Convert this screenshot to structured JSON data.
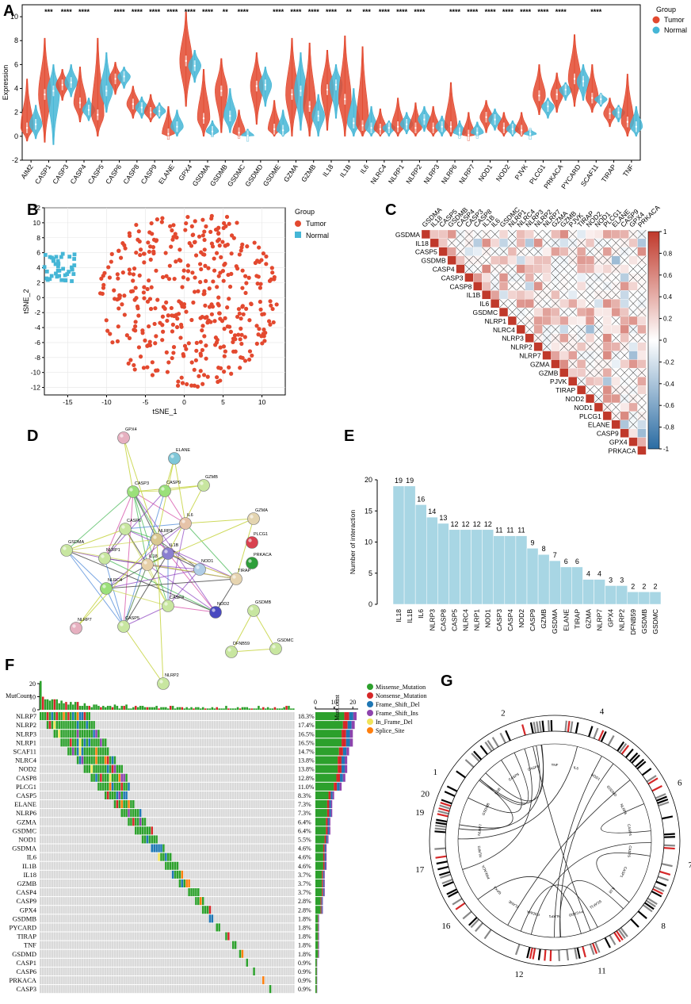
{
  "colors": {
    "tumor": "#e3492f",
    "normal": "#45b6d6",
    "bar": "#a8d6e4",
    "missense": "#2ca02c",
    "nonsense": "#d62728",
    "frame_del": "#1f77b4",
    "frame_ins": "#8e44ad",
    "inframe_del": "#f1e45a",
    "splice": "#ff7f0e",
    "grey": "#d9d9d9",
    "corr_pos": "#c0392b",
    "corr_neg": "#2b6ca3"
  },
  "panel_letters": [
    "A",
    "B",
    "C",
    "D",
    "E",
    "F",
    "G"
  ],
  "chart_data": [
    {
      "id": "A",
      "type": "violin",
      "ylabel": "Expression",
      "ylim": [
        -2,
        11
      ],
      "yticks": [
        -2,
        0,
        2,
        4,
        6,
        8,
        10
      ],
      "legend": {
        "title": "Group",
        "items": [
          "Tumor",
          "Normal"
        ],
        "position": "top-right"
      },
      "genes": [
        "AIM2",
        "CASP1",
        "CASP3",
        "CASP4",
        "CASP5",
        "CASP6",
        "CASP8",
        "CASP9",
        "ELANE",
        "GPX4",
        "GSDMA",
        "GSDMB",
        "GSDMC",
        "GSDMD",
        "GSDME",
        "GZMA",
        "GZMB",
        "IL18",
        "IL1B",
        "IL6",
        "NLRC4",
        "NLRP1",
        "NLRP2",
        "NLRP3",
        "NLRP6",
        "NLRP7",
        "NOD1",
        "NOD2",
        "PJVK",
        "PLCG1",
        "PRKACA",
        "PYCARD",
        "SCAF11",
        "TIRAP",
        "TNF"
      ],
      "significance": [
        "",
        "***",
        "****",
        "****",
        "",
        "****",
        "****",
        "****",
        "****",
        "****",
        "****",
        "**",
        "****",
        "",
        "****",
        "****",
        "****",
        "****",
        "**",
        "***",
        "****",
        "****",
        "****",
        "",
        "****",
        "****",
        "****",
        "****",
        "****",
        "****",
        "****",
        "",
        "****",
        "",
        ""
      ],
      "tumor_median": [
        0.7,
        3.5,
        4.3,
        2.8,
        1.8,
        4.8,
        2.7,
        2.0,
        0.2,
        6.3,
        1.5,
        3.8,
        0.3,
        4.2,
        0.6,
        3.5,
        2.5,
        3.9,
        3.1,
        0.9,
        0.6,
        0.8,
        0.7,
        0.7,
        0.8,
        0.1,
        1.6,
        0.7,
        0.5,
        3.4,
        3.5,
        4.8,
        3.2,
        1.9,
        1.2
      ],
      "normal_median": [
        1.0,
        3.8,
        4.5,
        2.2,
        3.8,
        5.0,
        2.4,
        2.1,
        0.8,
        5.9,
        0.4,
        1.7,
        0.05,
        4.3,
        0.5,
        3.8,
        1.7,
        4.3,
        1.1,
        0.7,
        0.7,
        1.0,
        1.4,
        0.8,
        0.3,
        0.3,
        1.4,
        0.6,
        0.2,
        2.5,
        3.9,
        4.6,
        3.1,
        2.0,
        0.8
      ],
      "tumor_min": [
        -0.4,
        -0.5,
        3.0,
        1.2,
        0.0,
        3.5,
        1.5,
        1.2,
        0.0,
        2.5,
        0.0,
        0.3,
        0.0,
        1.0,
        0.0,
        0.0,
        0.0,
        0.5,
        0.0,
        0.0,
        0.0,
        0.0,
        0.0,
        0.0,
        0.0,
        0.0,
        0.3,
        0.0,
        0.0,
        1.8,
        2.0,
        2.5,
        2.0,
        0.8,
        0.0
      ],
      "tumor_max": [
        4.8,
        8.2,
        5.6,
        5.8,
        8.2,
        6.2,
        4.2,
        3.5,
        2.5,
        10.4,
        5.6,
        6.5,
        2.2,
        7.0,
        3.0,
        8.2,
        7.8,
        7.2,
        8.4,
        7.5,
        2.3,
        3.2,
        2.8,
        2.5,
        4.5,
        2.0,
        3.0,
        2.0,
        2.0,
        6.0,
        5.3,
        8.5,
        6.0,
        3.2,
        5.2
      ],
      "normal_min": [
        -0.2,
        -0.7,
        3.3,
        1.3,
        2.0,
        4.0,
        1.5,
        1.5,
        0.0,
        4.5,
        0.0,
        0.3,
        0.0,
        2.5,
        0.0,
        0.5,
        0.0,
        1.5,
        0.0,
        0.0,
        0.0,
        0.2,
        0.4,
        0.0,
        0.0,
        0.0,
        0.5,
        0.0,
        0.0,
        1.5,
        3.0,
        3.0,
        2.5,
        1.2,
        0.0
      ],
      "normal_max": [
        2.6,
        6.0,
        6.0,
        3.2,
        7.0,
        5.8,
        3.3,
        2.8,
        2.2,
        7.2,
        1.3,
        4.0,
        0.6,
        5.8,
        2.2,
        7.0,
        3.5,
        6.0,
        4.0,
        2.5,
        1.3,
        2.0,
        2.5,
        1.7,
        1.3,
        1.2,
        2.3,
        1.3,
        0.6,
        3.2,
        4.5,
        6.0,
        3.6,
        2.6,
        2.5
      ]
    },
    {
      "id": "B",
      "type": "scatter",
      "xlabel": "tSNE_1",
      "ylabel": "tSNE_2",
      "xlim": [
        -18,
        13
      ],
      "ylim": [
        -13,
        12
      ],
      "xticks": [
        -15,
        -10,
        -5,
        0,
        5,
        10
      ],
      "yticks": [
        -12,
        -10,
        -8,
        -6,
        -4,
        -2,
        0,
        2,
        4,
        6,
        8,
        10,
        12
      ],
      "legend": {
        "title": "Group",
        "items": [
          "Tumor",
          "Normal"
        ],
        "position": "right"
      },
      "tumor_cluster": {
        "x_range": [
          -11,
          12
        ],
        "y_range": [
          -12.5,
          11
        ],
        "approx_points": 420
      },
      "normal_cluster": {
        "x_range": [
          -18,
          -14
        ],
        "y_range": [
          2,
          6
        ],
        "approx_points": 40
      }
    },
    {
      "id": "C",
      "type": "heatmap",
      "genes": [
        "GSDMA",
        "IL18",
        "CASP5",
        "GSDMB",
        "CASP4",
        "CASP3",
        "CASP8",
        "IL1B",
        "IL6",
        "GSDMC",
        "NLRP1",
        "NLRC4",
        "NLRP3",
        "NLRP2",
        "NLRP7",
        "GZMA",
        "GZMB",
        "PJVK",
        "TIRAP",
        "NOD2",
        "NOD1",
        "PLCG1",
        "ELANE",
        "CASP9",
        "GPX4",
        "PRKACA"
      ],
      "colorbar": {
        "range": [
          -1,
          1
        ],
        "ticks": [
          1,
          0.8,
          0.6,
          0.4,
          0.2,
          0,
          -0.2,
          -0.4,
          -0.6,
          -0.8,
          -1
        ]
      }
    },
    {
      "id": "D",
      "type": "network",
      "nodes": [
        "GPX4",
        "ELANE",
        "CASP3",
        "CASP9",
        "GZMB",
        "GZMA",
        "CASP6",
        "NLRP3",
        "IL6",
        "PLCG1",
        "GSDMA",
        "NLRP1",
        "IL18",
        "IL1B",
        "PRKACA",
        "NLRC4",
        "NOD1",
        "TIRAP",
        "NLRP7",
        "CASP4",
        "NOD2",
        "CASP5",
        "GSDMB",
        "DFNB59",
        "GSDMC",
        "NLRP2"
      ]
    },
    {
      "id": "E",
      "type": "bar",
      "ylabel": "Number of interaction",
      "ylim": [
        0,
        20
      ],
      "yticks": [
        0,
        5,
        10,
        15,
        20
      ],
      "categories": [
        "IL18",
        "IL1B",
        "IL6",
        "NLRP3",
        "CASP8",
        "CASP5",
        "NLRC4",
        "NLRP1",
        "NOD1",
        "CASP3",
        "CASP4",
        "NOD2",
        "CASP9",
        "GZMB",
        "GSDMA",
        "ELANE",
        "TIRAP",
        "GZMA",
        "NLRP7",
        "GPX4",
        "NLRP2",
        "DFNB59",
        "GSDMB",
        "GSDMC"
      ],
      "values": [
        19,
        19,
        16,
        14,
        13,
        12,
        12,
        12,
        12,
        11,
        11,
        11,
        9,
        8,
        7,
        6,
        6,
        4,
        4,
        3,
        3,
        2,
        2,
        2
      ]
    },
    {
      "id": "F",
      "type": "oncoplot",
      "top_axis_label": "MutCount",
      "top_ticks": [
        0,
        10,
        20
      ],
      "right_axis_label": "MutCount",
      "right_ticks": [
        0,
        10,
        20
      ],
      "legend": [
        "Missense_Mutation",
        "Nonsense_Mutation",
        "Frame_Shift_Del",
        "Frame_Shift_Ins",
        "In_Frame_Del",
        "Splice_Site"
      ],
      "genes": [
        "NLRP7",
        "NLRP2",
        "NLRP3",
        "NLRP1",
        "SCAF11",
        "NLRC4",
        "NOD2",
        "CASP8",
        "PLCG1",
        "CASP5",
        "ELANE",
        "NLRP6",
        "GZMA",
        "GSDMC",
        "NOD1",
        "GSDMA",
        "IL6",
        "IL1B",
        "IL18",
        "GZMB",
        "CASP4",
        "CASP9",
        "GPX4",
        "GSDMB",
        "PYCARD",
        "TIRAP",
        "TNF",
        "GSDMD",
        "CASP1",
        "CASP6",
        "PRKACA",
        "CASP3"
      ],
      "percent": [
        "18.3%",
        "17.4%",
        "16.5%",
        "16.5%",
        "14.7%",
        "13.8%",
        "13.8%",
        "12.8%",
        "11.0%",
        "8.3%",
        "7.3%",
        "7.3%",
        "6.4%",
        "6.4%",
        "5.5%",
        "4.6%",
        "4.6%",
        "4.6%",
        "3.7%",
        "3.7%",
        "3.7%",
        "2.8%",
        "2.8%",
        "1.8%",
        "1.8%",
        "1.8%",
        "1.8%",
        "1.8%",
        "0.9%",
        "0.9%",
        "0.9%",
        "0.9%"
      ],
      "counts": [
        22,
        21,
        20,
        20,
        18,
        17,
        17,
        16,
        14,
        10,
        9,
        9,
        8,
        8,
        7,
        6,
        6,
        6,
        5,
        5,
        5,
        4,
        4,
        2,
        2,
        2,
        2,
        2,
        1,
        1,
        1,
        1
      ]
    },
    {
      "id": "G",
      "type": "circos",
      "chromosome_labels": [
        "1",
        "2",
        "4",
        "6",
        "7",
        "8",
        "11",
        "12",
        "16",
        "17",
        "19",
        "20"
      ],
      "genes": [
        "TNF",
        "IL6",
        "NOD1",
        "GSDMD",
        "NLRP6",
        "CASP4",
        "CASP5",
        "CASP1",
        "IL18",
        "SCAF11",
        "PYCARD",
        "NLRP1",
        "GSDMA",
        "ELANE",
        "GPX4",
        "PRKACA",
        "NLRP2",
        "NLRP7",
        "GSDMB",
        "IL1B",
        "CASP8",
        "CASP3"
      ]
    }
  ]
}
